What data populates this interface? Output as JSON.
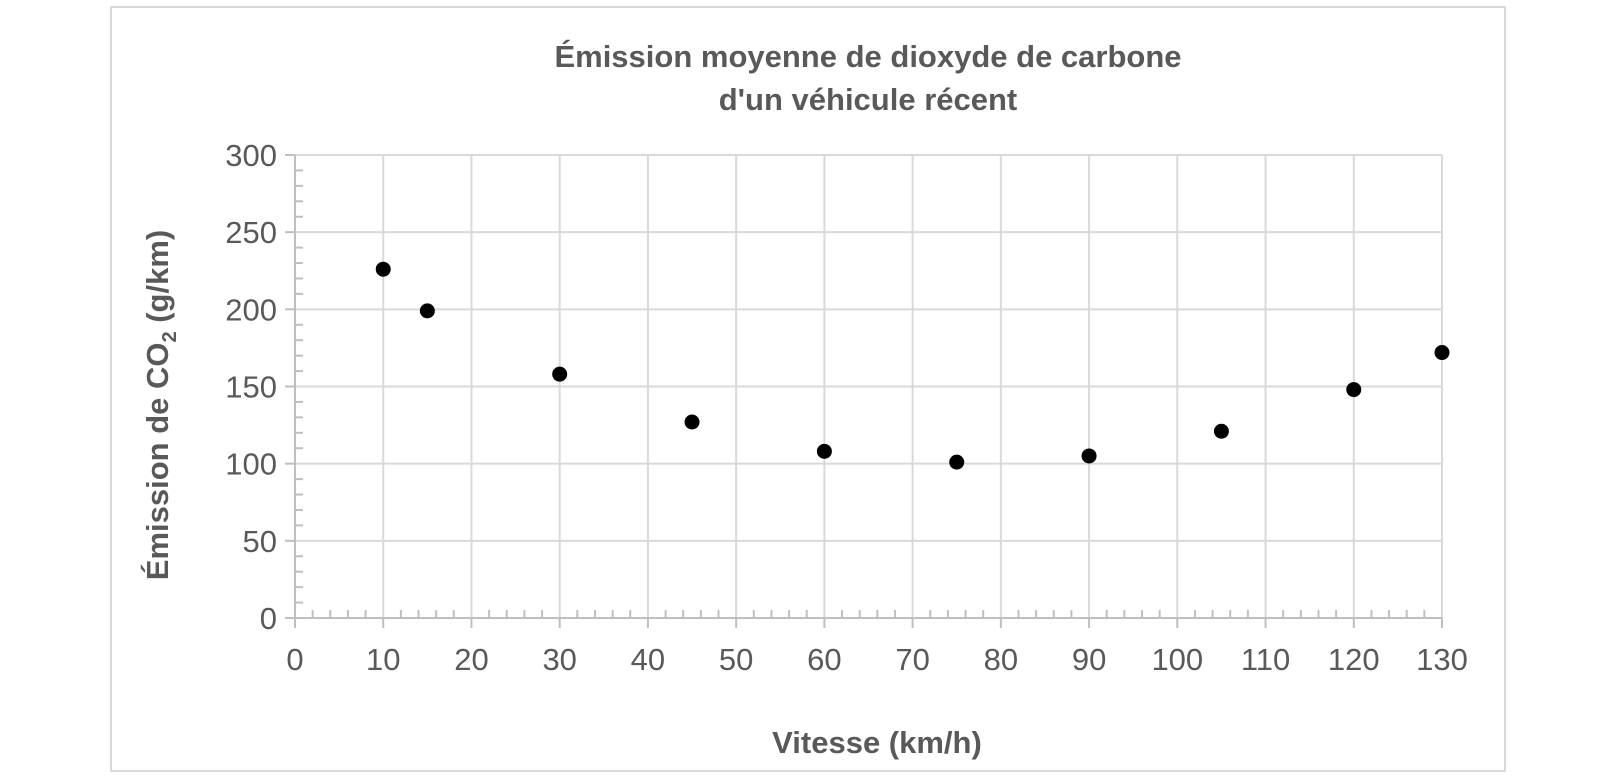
{
  "chart_data": {
    "type": "scatter",
    "title_line1": "Émission moyenne de dioxyde de carbone",
    "title_line2": "d'un véhicule récent",
    "xlabel": "Vitesse (km/h)",
    "ylabel_main": "Émission de CO",
    "ylabel_sub": "2",
    "ylabel_unit": " (g/km)",
    "xlim": [
      0,
      130
    ],
    "ylim": [
      0,
      300
    ],
    "x_ticks": [
      0,
      10,
      20,
      30,
      40,
      50,
      60,
      70,
      80,
      90,
      100,
      110,
      120,
      130
    ],
    "y_ticks": [
      0,
      50,
      100,
      150,
      200,
      250,
      300
    ],
    "grid": true,
    "legend": "none",
    "series": [
      {
        "x": [
          10,
          15,
          30,
          45,
          60,
          75,
          90,
          105,
          120,
          130
        ],
        "y": [
          226,
          199,
          158,
          127,
          108,
          101,
          105,
          121,
          148,
          172
        ]
      }
    ],
    "colors": {
      "marker": "#000000",
      "grid": "#d9d9d9",
      "axis": "#bfbfbf",
      "text": "#595959",
      "frame": "#d9d9d9"
    }
  }
}
